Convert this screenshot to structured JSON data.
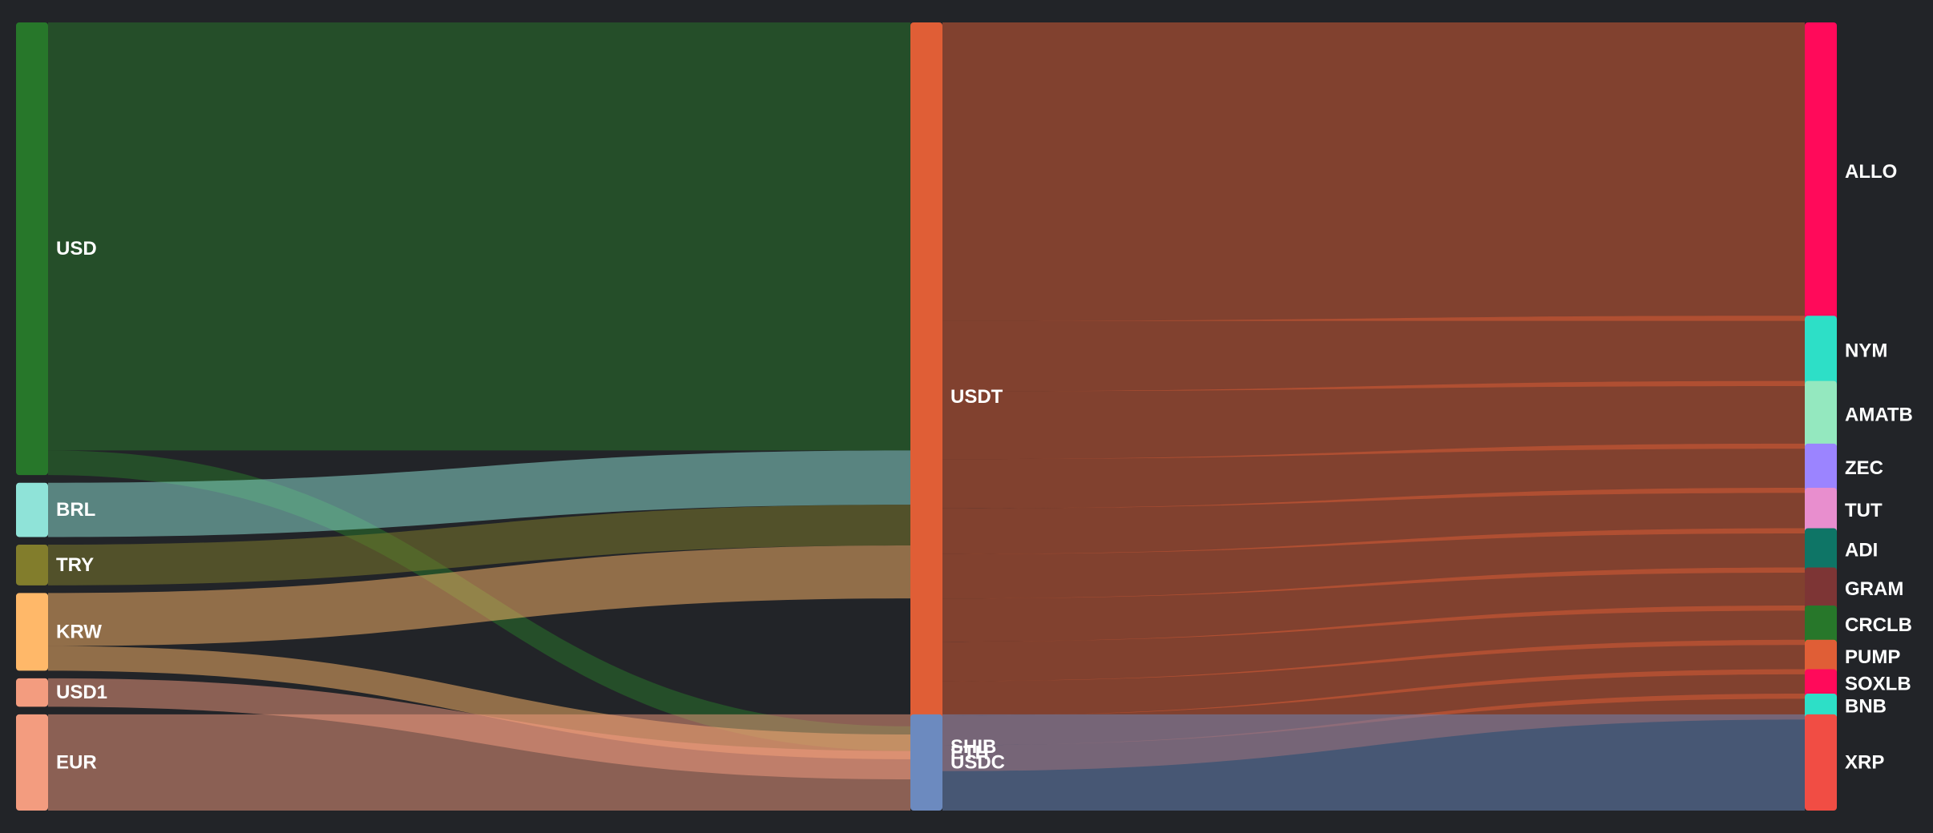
{
  "chart_data": {
    "type": "sankey",
    "nodes": [
      {
        "id": "USD",
        "column": 0,
        "color": "#27772a"
      },
      {
        "id": "BRL",
        "column": 0,
        "color": "#8fe3d8"
      },
      {
        "id": "TRY",
        "column": 0,
        "color": "#827d2c"
      },
      {
        "id": "KRW",
        "column": 0,
        "color": "#ffb869"
      },
      {
        "id": "USD1",
        "column": 0,
        "color": "#f39c7f"
      },
      {
        "id": "EUR",
        "column": 0,
        "color": "#f39c7f"
      },
      {
        "id": "USDT",
        "column": 1,
        "color": "#e05e36"
      },
      {
        "id": "ETH",
        "column": 1,
        "color": "#6c8abf"
      },
      {
        "id": "SHIB",
        "column": 1,
        "color": "#f14d44"
      },
      {
        "id": "USDC",
        "column": 1,
        "color": "#6c8abf"
      },
      {
        "id": "ALLO",
        "column": 2,
        "color": "#ff0a5a"
      },
      {
        "id": "NYM",
        "column": 2,
        "color": "#2ddfc7"
      },
      {
        "id": "AMATB",
        "column": 2,
        "color": "#94e8bf"
      },
      {
        "id": "ZEC",
        "column": 2,
        "color": "#9b84ff"
      },
      {
        "id": "TUT",
        "column": 2,
        "color": "#e88ece"
      },
      {
        "id": "ADI",
        "column": 2,
        "color": "#0e7566"
      },
      {
        "id": "GRAM",
        "column": 2,
        "color": "#7d3535"
      },
      {
        "id": "CRCLB",
        "column": 2,
        "color": "#27772a"
      },
      {
        "id": "PUMP",
        "column": 2,
        "color": "#e05e36"
      },
      {
        "id": "SOXLB",
        "column": 2,
        "color": "#ff0a5a"
      },
      {
        "id": "BNB",
        "column": 2,
        "color": "#2ddfc7"
      },
      {
        "id": "XRP",
        "column": 2,
        "color": "#f14d44"
      }
    ],
    "links": [
      {
        "source": "USD",
        "target": "USDT",
        "value": 347,
        "color": "#27772a"
      },
      {
        "source": "USD",
        "target": "ETH",
        "value": 20,
        "color": "#27772a"
      },
      {
        "source": "BRL",
        "target": "USDT",
        "value": 44,
        "color": "#8fe3d8"
      },
      {
        "source": "TRY",
        "target": "USDT",
        "value": 33,
        "color": "#827d2c"
      },
      {
        "source": "KRW",
        "target": "USDT",
        "value": 43,
        "color": "#ffb869"
      },
      {
        "source": "KRW",
        "target": "SHIB",
        "value": 20,
        "color": "#ffb869"
      },
      {
        "source": "USD1",
        "target": "ETH",
        "value": 23,
        "color": "#f39c7f"
      },
      {
        "source": "EUR",
        "target": "USDC",
        "value": 78,
        "color": "#f39c7f"
      },
      {
        "source": "USDT",
        "target": "ALLO",
        "value": 242,
        "color": "#e05e36"
      },
      {
        "source": "USDT",
        "target": "NYM",
        "value": 57,
        "color": "#e05e36"
      },
      {
        "source": "USDT",
        "target": "AMATB",
        "value": 55,
        "color": "#e05e36"
      },
      {
        "source": "USDT",
        "target": "ZEC",
        "value": 40,
        "color": "#e05e36"
      },
      {
        "source": "USDT",
        "target": "TUT",
        "value": 37,
        "color": "#e05e36"
      },
      {
        "source": "USDT",
        "target": "ADI",
        "value": 36,
        "color": "#e05e36"
      },
      {
        "source": "USDT",
        "target": "GRAM",
        "value": 35,
        "color": "#e05e36"
      },
      {
        "source": "USDT",
        "target": "CRCLB",
        "value": 32,
        "color": "#e05e36"
      },
      {
        "source": "USDT",
        "target": "PUMP",
        "value": 28,
        "color": "#e05e36"
      },
      {
        "source": "USDT",
        "target": "SOXLB",
        "value": 24,
        "color": "#e05e36"
      },
      {
        "source": "USDT",
        "target": "BNB",
        "value": 21,
        "color": "#e05e36"
      },
      {
        "source": "USDC",
        "target": "XRP",
        "value": 78,
        "color": "#6c8abf"
      }
    ]
  }
}
